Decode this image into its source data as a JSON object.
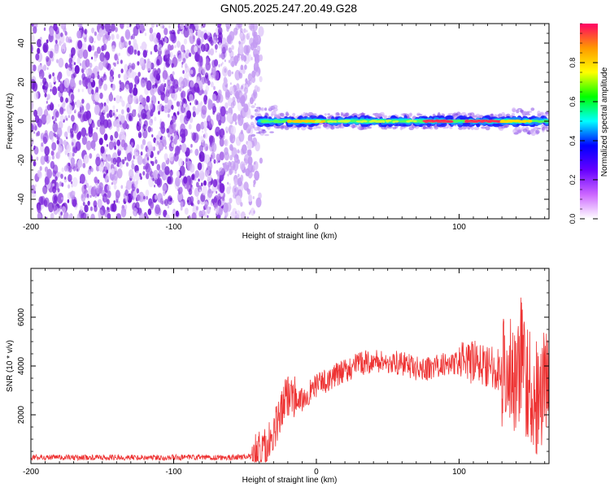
{
  "title": "GN05.2025.247.20.49.G28",
  "chart_data": [
    {
      "type": "heatmap",
      "xlabel": "Height of straight line (km)",
      "ylabel": "Frequency (Hz)",
      "xlim": [
        -200,
        163
      ],
      "ylim": [
        -50,
        50
      ],
      "xticks": [
        -200,
        -100,
        0,
        100
      ],
      "yticks": [
        -40,
        -20,
        0,
        20,
        40
      ],
      "description_noise_region": [
        -200,
        -40
      ],
      "signal_band_frequency": 0,
      "colorbar": {
        "label": "Normalized spectral amplitude",
        "range": [
          0,
          1
        ],
        "ticks": [
          "0.0",
          "0.2",
          "0.4",
          "0.6",
          "0.8"
        ],
        "colors": [
          "#ffffff",
          "#cc66ff",
          "#6600ff",
          "#0000ff",
          "#00ffff",
          "#00ff00",
          "#ffff00",
          "#ff9900",
          "#ff0066"
        ]
      }
    },
    {
      "type": "line",
      "xlabel": "Height of straight line (km)",
      "ylabel": "SNR (10 * v/v)",
      "xlim": [
        -200,
        163
      ],
      "ylim": [
        0,
        8000
      ],
      "xticks": [
        -200,
        -100,
        0,
        100
      ],
      "yticks": [
        2000,
        4000,
        6000
      ],
      "series": [
        {
          "name": "SNR",
          "color": "#ee3333",
          "x": [
            -200,
            -150,
            -100,
            -60,
            -45,
            -35,
            -28,
            -22,
            -18,
            -12,
            -5,
            0,
            10,
            20,
            30,
            40,
            50,
            60,
            70,
            80,
            90,
            100,
            110,
            120,
            130,
            140,
            150,
            155,
            160,
            163
          ],
          "y": [
            250,
            250,
            250,
            250,
            300,
            600,
            1500,
            2600,
            3000,
            2500,
            2900,
            3200,
            3500,
            3800,
            4100,
            4200,
            4150,
            4100,
            3900,
            3900,
            4100,
            4100,
            4150,
            4050,
            3800,
            3700,
            3200,
            2600,
            3100,
            3700
          ]
        }
      ]
    }
  ]
}
